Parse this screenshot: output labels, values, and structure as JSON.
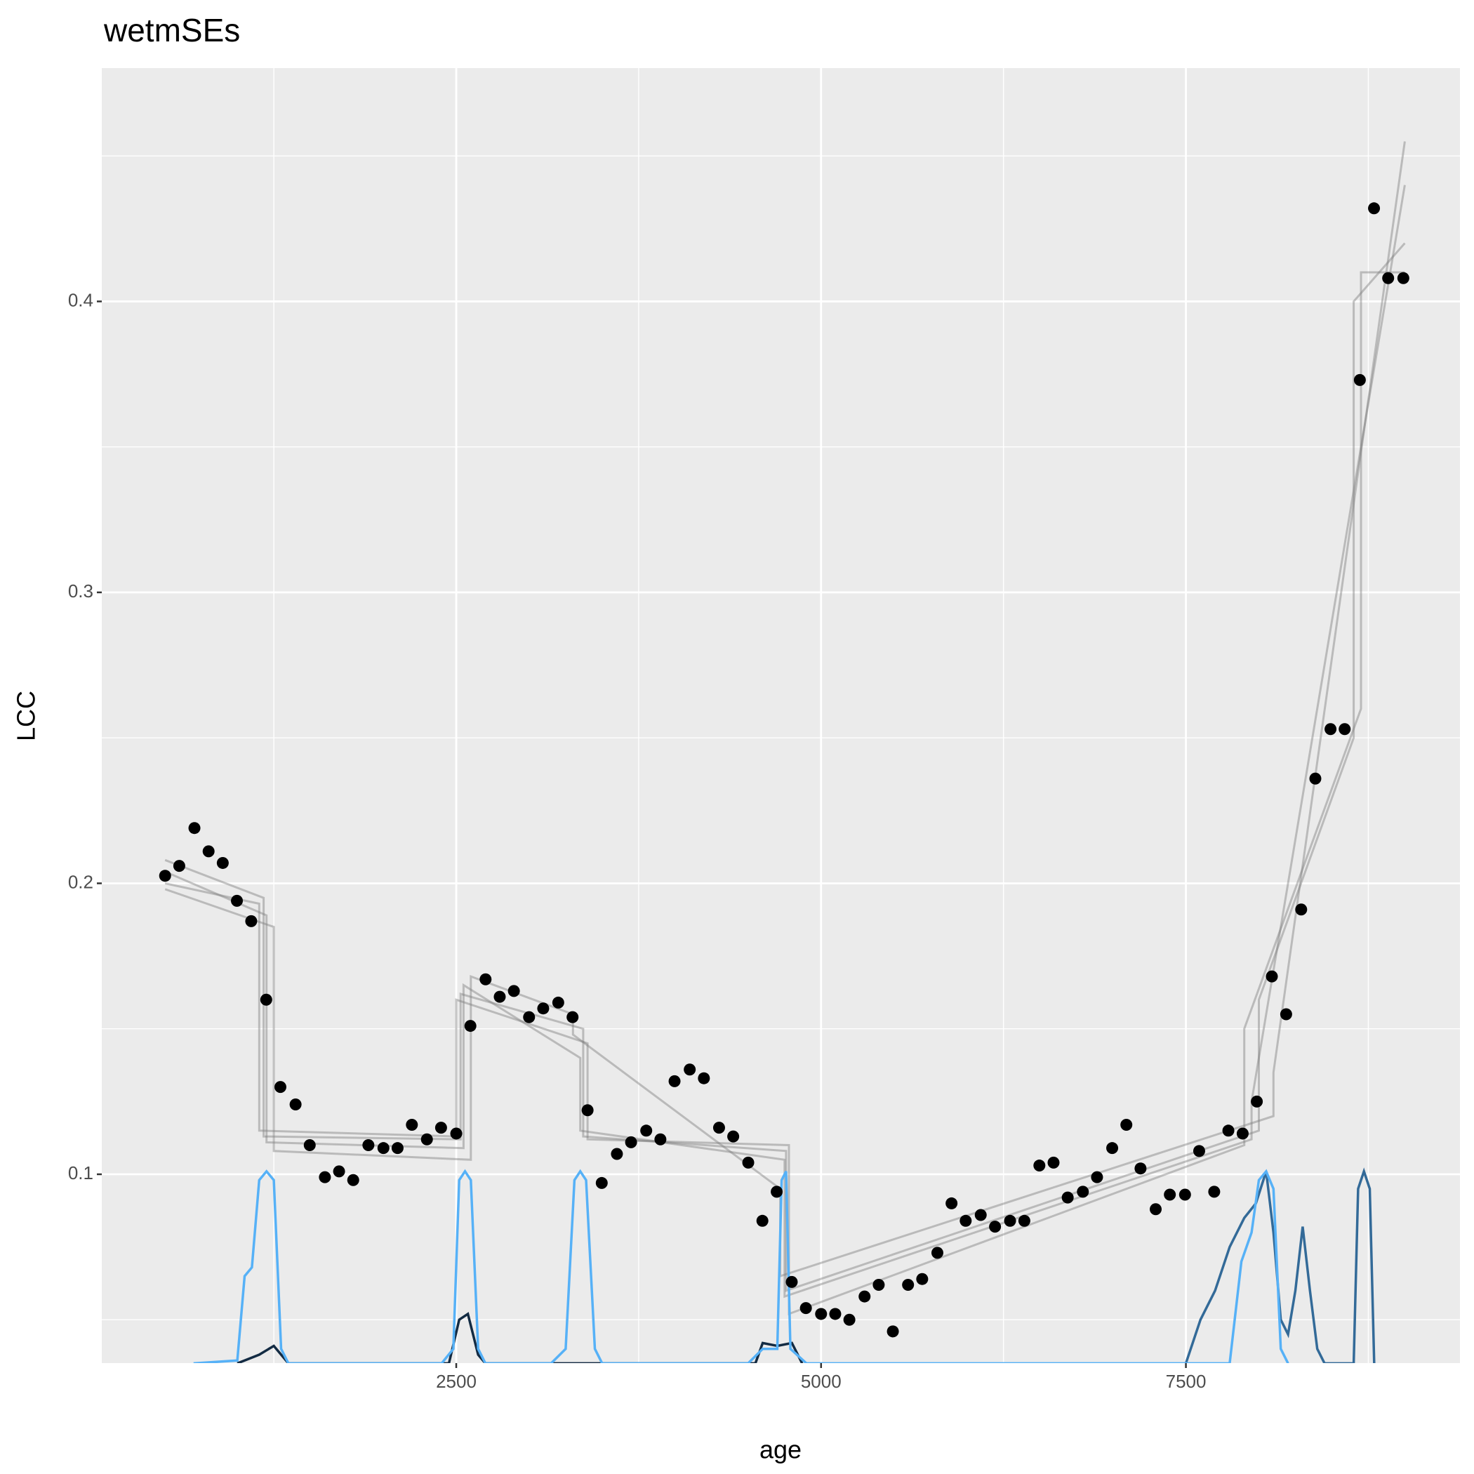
{
  "chart_data": {
    "type": "scatter",
    "title": "wetmSEs",
    "x_label": "age",
    "y_label": "LCC",
    "xlim": [
      71,
      9378
    ],
    "ylim": [
      0.0351,
      0.4802
    ],
    "xticks": [
      2500,
      5000,
      7500
    ],
    "yticks": [
      0.1,
      0.2,
      0.3,
      0.4
    ],
    "x_minor_grid": [
      1250,
      3750,
      6250,
      8750
    ],
    "y_minor_grid": [
      0.05,
      0.15,
      0.25,
      0.35,
      0.45
    ],
    "grid": true,
    "point_color": "#000000",
    "x": [
      505,
      602,
      706,
      803,
      900,
      997,
      1095,
      1198,
      1295,
      1399,
      1496,
      1600,
      1697,
      1794,
      1898,
      2001,
      2098,
      2196,
      2299,
      2396,
      2500,
      2597,
      2701,
      2798,
      2895,
      2999,
      3096,
      3199,
      3297,
      3400,
      3497,
      3601,
      3698,
      3802,
      3899,
      3996,
      4100,
      4197,
      4301,
      4398,
      4501,
      4598,
      4696,
      4799,
      4896,
      5000,
      5097,
      5194,
      5298,
      5395,
      5492,
      5596,
      5693,
      5797,
      5894,
      5991,
      6094,
      6192,
      6295,
      6393,
      6496,
      6593,
      6690,
      6794,
      6891,
      6995,
      7092,
      7189,
      7293,
      7390,
      7494,
      7591,
      7694,
      7791,
      7889,
      7986,
      8089,
      8187,
      8290,
      8387,
      8491,
      8588,
      8692,
      8789,
      8886,
      8990
    ],
    "values": [
      0.2026,
      0.206,
      0.219,
      0.211,
      0.207,
      0.194,
      0.187,
      0.16,
      0.13,
      0.124,
      0.11,
      0.099,
      0.101,
      0.098,
      0.11,
      0.109,
      0.109,
      0.117,
      0.112,
      0.116,
      0.114,
      0.151,
      0.167,
      0.161,
      0.163,
      0.154,
      0.157,
      0.159,
      0.154,
      0.122,
      0.097,
      0.107,
      0.111,
      0.115,
      0.112,
      0.132,
      0.136,
      0.133,
      0.116,
      0.113,
      0.104,
      0.084,
      0.094,
      0.063,
      0.054,
      0.052,
      0.052,
      0.05,
      0.058,
      0.062,
      0.046,
      0.062,
      0.064,
      0.073,
      0.09,
      0.084,
      0.086,
      0.082,
      0.084,
      0.084,
      0.103,
      0.104,
      0.092,
      0.094,
      0.099,
      0.109,
      0.117,
      0.102,
      0.088,
      0.093,
      0.093,
      0.108,
      0.094,
      0.115,
      0.114,
      0.125,
      0.168,
      0.155,
      0.191,
      0.236,
      0.253,
      0.253,
      0.373,
      0.432,
      0.408,
      0.408
    ],
    "fits": [
      {
        "color": "#7f7f7f",
        "x": [
          505,
          1200,
          1200,
          2550,
          2550,
          3350,
          3350,
          4750,
          4750,
          7950,
          7950,
          9000
        ],
        "values": [
          0.204,
          0.189,
          0.111,
          0.109,
          0.165,
          0.14,
          0.115,
          0.105,
          0.058,
          0.112,
          0.125,
          0.44
        ]
      },
      {
        "color": "#7f7f7f",
        "x": [
          505,
          1150,
          1150,
          2500,
          2500,
          3400,
          3400,
          4780,
          4780,
          7900,
          7900,
          8700,
          8700,
          9000
        ],
        "values": [
          0.2,
          0.193,
          0.115,
          0.113,
          0.16,
          0.145,
          0.112,
          0.11,
          0.052,
          0.11,
          0.15,
          0.26,
          0.41,
          0.41
        ]
      },
      {
        "color": "#7f7f7f",
        "x": [
          505,
          1250,
          1250,
          2600,
          2600,
          3300,
          3300,
          4720,
          4720,
          8100,
          8100,
          9000
        ],
        "values": [
          0.198,
          0.185,
          0.108,
          0.105,
          0.168,
          0.155,
          0.148,
          0.095,
          0.065,
          0.12,
          0.135,
          0.455
        ]
      },
      {
        "color": "#7f7f7f",
        "x": [
          505,
          1180,
          1180,
          2530,
          2530,
          3370,
          3370,
          4760,
          4760,
          8000,
          8000,
          8650,
          8650,
          9000
        ],
        "values": [
          0.208,
          0.195,
          0.113,
          0.112,
          0.162,
          0.15,
          0.113,
          0.108,
          0.06,
          0.115,
          0.16,
          0.25,
          0.4,
          0.42
        ]
      }
    ],
    "densities": [
      {
        "color": "#132B43",
        "x": [
          1000,
          1150,
          1250,
          1350,
          2450,
          2520,
          2580,
          2650,
          2700,
          4550,
          4600,
          4700,
          4800,
          4870
        ],
        "values": [
          0.035,
          0.038,
          0.041,
          0.035,
          0.035,
          0.05,
          0.052,
          0.038,
          0.035,
          0.035,
          0.042,
          0.041,
          0.042,
          0.035
        ]
      },
      {
        "color": "#336A98",
        "x": [
          7500,
          7600,
          7700,
          7800,
          7900,
          7980,
          8050,
          8100,
          8150,
          8200,
          8250,
          8300,
          8350,
          8400,
          8450,
          8650,
          8680,
          8720,
          8760,
          8790
        ],
        "values": [
          0.035,
          0.05,
          0.06,
          0.075,
          0.085,
          0.09,
          0.101,
          0.08,
          0.05,
          0.045,
          0.06,
          0.082,
          0.06,
          0.04,
          0.035,
          0.035,
          0.095,
          0.101,
          0.095,
          0.035
        ]
      },
      {
        "color": "#56B1F7",
        "x": [
          700,
          1000,
          1050,
          1100,
          1150,
          1200,
          1250,
          1300,
          1350,
          2400,
          2480,
          2520,
          2560,
          2600,
          2650,
          2700,
          3150,
          3250,
          3310,
          3350,
          3390,
          3450,
          3500,
          4500,
          4600,
          4700,
          4730,
          4760,
          4790,
          4900,
          7800,
          7880,
          7950,
          8000,
          8050,
          8100,
          8150,
          8200
        ],
        "values": [
          0.035,
          0.036,
          0.065,
          0.068,
          0.098,
          0.101,
          0.098,
          0.04,
          0.035,
          0.035,
          0.04,
          0.098,
          0.101,
          0.098,
          0.04,
          0.035,
          0.035,
          0.04,
          0.098,
          0.101,
          0.098,
          0.04,
          0.035,
          0.035,
          0.04,
          0.04,
          0.098,
          0.101,
          0.04,
          0.035,
          0.035,
          0.07,
          0.08,
          0.098,
          0.101,
          0.095,
          0.04,
          0.035
        ]
      }
    ]
  }
}
